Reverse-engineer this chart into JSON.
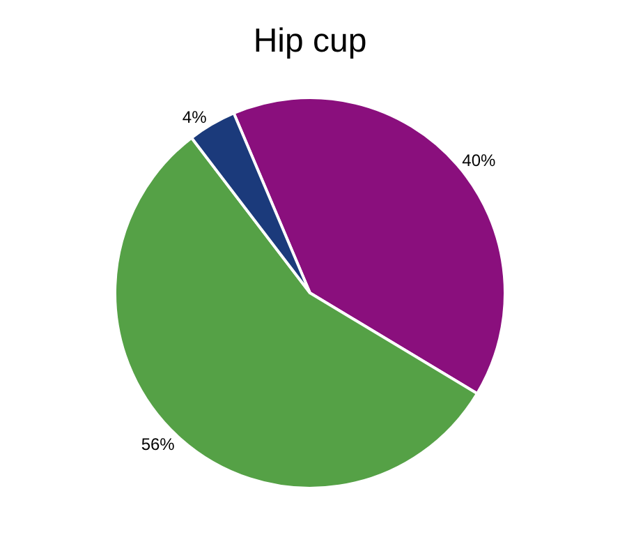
{
  "chart_data": {
    "type": "pie",
    "title": "Hip cup",
    "categories": [
      null,
      null,
      null
    ],
    "values": [
      40,
      56,
      4
    ],
    "value_labels": [
      "40%",
      "56%",
      "4%"
    ],
    "colors": [
      "#8a0f7d",
      "#55a146",
      "#1b3a7b"
    ],
    "legend": false
  }
}
